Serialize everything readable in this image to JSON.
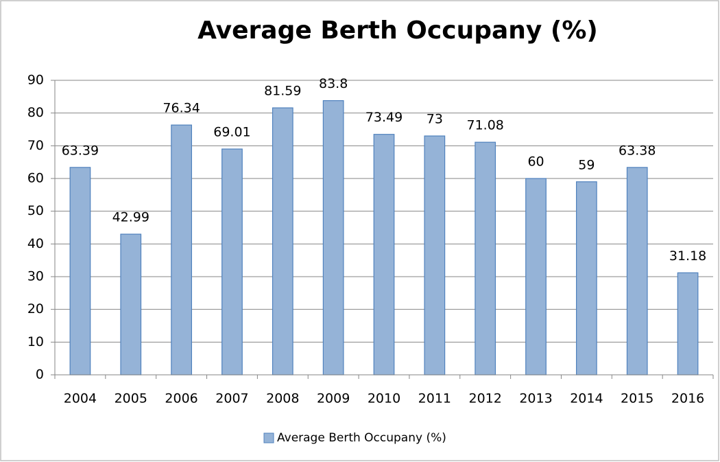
{
  "chart_data": {
    "type": "bar",
    "title": "Average Berth Occupany (%)",
    "categories": [
      "2004",
      "2005",
      "2006",
      "2007",
      "2008",
      "2009",
      "2010",
      "2011",
      "2012",
      "2013",
      "2014",
      "2015",
      "2016"
    ],
    "series": [
      {
        "name": "Average Berth Occupany (%)",
        "color": "#95b3d7",
        "values": [
          63.39,
          42.99,
          76.34,
          69.01,
          81.59,
          83.8,
          73.49,
          73,
          71.08,
          60,
          59,
          63.38,
          31.18
        ]
      }
    ],
    "ylim": [
      0,
      90
    ],
    "yticks": [
      0,
      10,
      20,
      30,
      40,
      50,
      60,
      70,
      80,
      90
    ],
    "grid": true,
    "legend": "bottom"
  }
}
